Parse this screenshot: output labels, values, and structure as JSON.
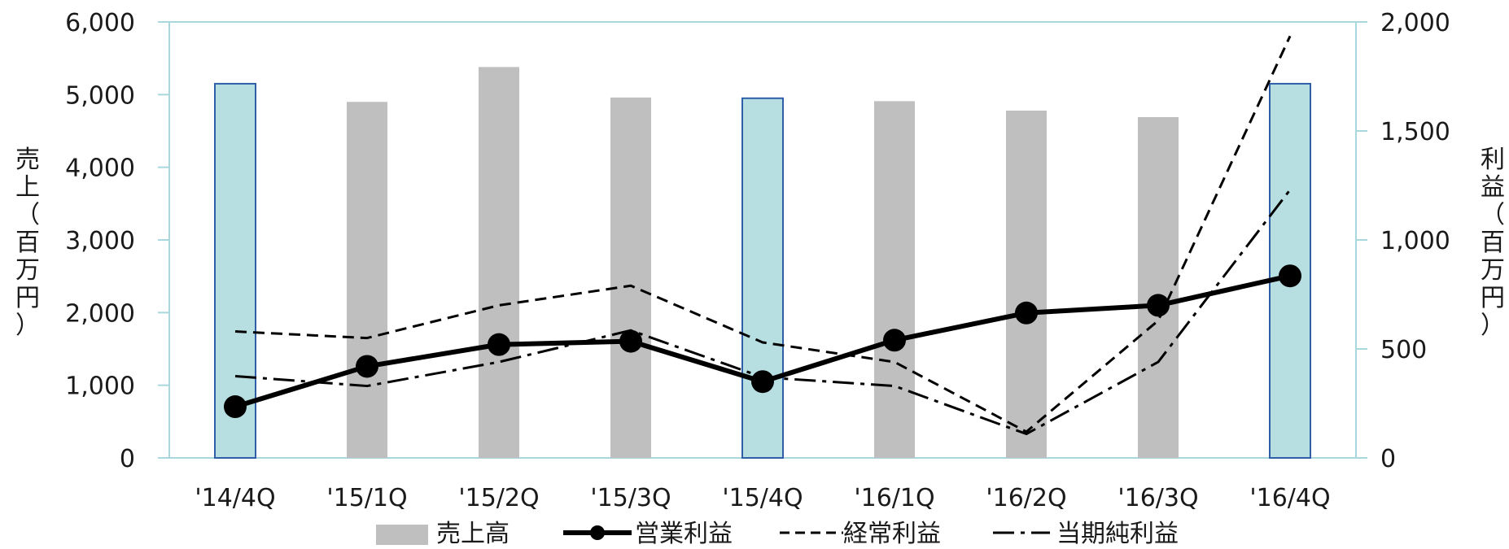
{
  "chart_data": {
    "type": "bar+line",
    "categories": [
      "'14/4Q",
      "'15/1Q",
      "'15/2Q",
      "'15/3Q",
      "'15/4Q",
      "'16/1Q",
      "'16/2Q",
      "'16/3Q",
      "'16/4Q"
    ],
    "y_left": {
      "label": "売上（百万円）",
      "min": 0,
      "max": 6000,
      "ticks": [
        "0",
        "1,000",
        "2,000",
        "3,000",
        "4,000",
        "5,000",
        "6,000"
      ]
    },
    "y_right": {
      "label": "利益（百万円）",
      "min": 0,
      "max": 2000,
      "ticks": [
        "0",
        "500",
        "1,000",
        "1,500",
        "2,000"
      ]
    },
    "bars": {
      "name": "売上高",
      "axis": "left",
      "values": [
        5150,
        4900,
        5380,
        4960,
        4950,
        4910,
        4780,
        4690,
        5150
      ],
      "highlight": [
        true,
        false,
        false,
        false,
        true,
        false,
        false,
        false,
        true
      ],
      "color": "#bfbfbf",
      "highlight_color": "#b7dee0",
      "highlight_border": "#2e5fa8"
    },
    "lines": [
      {
        "name": "営業利益",
        "axis": "right",
        "style": "solid-marker",
        "values": [
          235,
          420,
          520,
          535,
          350,
          540,
          665,
          700,
          835
        ]
      },
      {
        "name": "経常利益",
        "axis": "right",
        "style": "dashed",
        "values": [
          580,
          550,
          700,
          790,
          530,
          440,
          120,
          630,
          1935
        ]
      },
      {
        "name": "当期純利益",
        "axis": "right",
        "style": "dashdot",
        "values": [
          375,
          330,
          440,
          585,
          370,
          330,
          110,
          440,
          1230
        ]
      }
    ],
    "grid": false,
    "legend_position": "bottom",
    "plot_border_color": "#a8d8de"
  }
}
